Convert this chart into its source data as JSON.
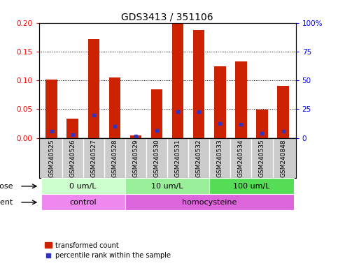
{
  "title": "GDS3413 / 351106",
  "samples": [
    "GSM240525",
    "GSM240526",
    "GSM240527",
    "GSM240528",
    "GSM240529",
    "GSM240530",
    "GSM240531",
    "GSM240532",
    "GSM240533",
    "GSM240534",
    "GSM240535",
    "GSM240848"
  ],
  "red_values": [
    0.101,
    0.034,
    0.172,
    0.105,
    0.004,
    0.084,
    0.198,
    0.188,
    0.124,
    0.133,
    0.049,
    0.09
  ],
  "blue_values": [
    0.012,
    0.005,
    0.04,
    0.02,
    0.003,
    0.013,
    0.045,
    0.045,
    0.025,
    0.024,
    0.008,
    0.012
  ],
  "red_color": "#cc2200",
  "blue_color": "#3333bb",
  "bar_width": 0.55,
  "ylim_left": [
    0,
    0.2
  ],
  "ylim_right": [
    0,
    100
  ],
  "yticks_left": [
    0,
    0.05,
    0.1,
    0.15,
    0.2
  ],
  "yticks_right": [
    0,
    25,
    50,
    75,
    100
  ],
  "ytick_labels_right": [
    "0",
    "25",
    "50",
    "75",
    "100%"
  ],
  "dose_groups": [
    {
      "label": "0 um/L",
      "start": 0,
      "end": 4,
      "color": "#ccffcc"
    },
    {
      "label": "10 um/L",
      "start": 4,
      "end": 8,
      "color": "#99ee99"
    },
    {
      "label": "100 um/L",
      "start": 8,
      "end": 12,
      "color": "#55dd55"
    }
  ],
  "agent_groups": [
    {
      "label": "control",
      "start": 0,
      "end": 4,
      "color": "#ee88ee"
    },
    {
      "label": "homocysteine",
      "start": 4,
      "end": 12,
      "color": "#dd66dd"
    }
  ],
  "dose_label": "dose",
  "agent_label": "agent",
  "legend_red_label": "transformed count",
  "legend_blue_label": "percentile rank within the sample",
  "label_bg_color": "#cccccc",
  "label_fontsize": 6.5,
  "axis_label_fontsize": 8.0,
  "tick_fontsize": 7.5,
  "title_fontsize": 10
}
